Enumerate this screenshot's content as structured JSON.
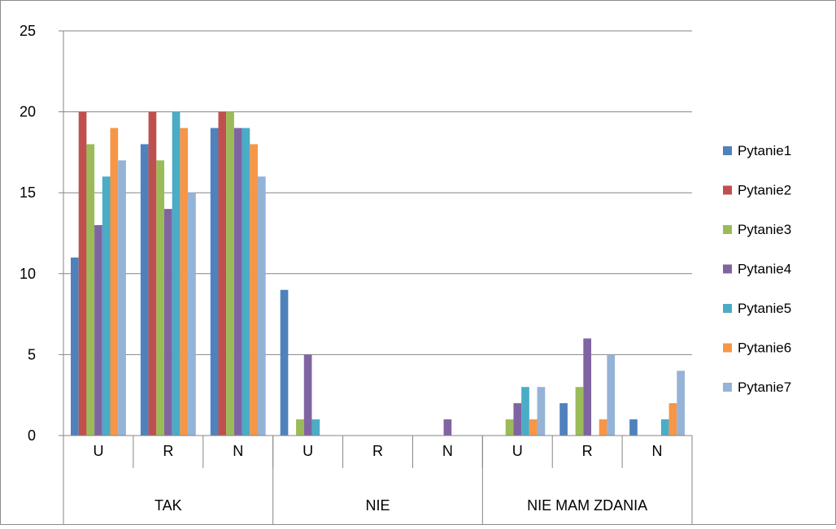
{
  "chart_data": {
    "type": "bar",
    "groups": [
      {
        "label": "TAK",
        "categories": [
          "U",
          "R",
          "N"
        ]
      },
      {
        "label": "NIE",
        "categories": [
          "U",
          "R",
          "N"
        ]
      },
      {
        "label": "NIE MAM ZDANIA",
        "categories": [
          "U",
          "R",
          "N"
        ]
      }
    ],
    "ylim": [
      0,
      25
    ],
    "yticks": [
      "0",
      "5",
      "10",
      "15",
      "20",
      "25"
    ],
    "grid": true,
    "legend_position": "right",
    "series": [
      {
        "name": "Pytanie1",
        "color": "#4F81BD",
        "values": [
          11,
          18,
          19,
          9,
          0,
          0,
          0,
          2,
          1
        ]
      },
      {
        "name": "Pytanie2",
        "color": "#C0504D",
        "values": [
          20,
          20,
          20,
          0,
          0,
          0,
          0,
          0,
          0
        ]
      },
      {
        "name": "Pytanie3",
        "color": "#9BBB59",
        "values": [
          18,
          17,
          20,
          1,
          0,
          0,
          1,
          3,
          0
        ]
      },
      {
        "name": "Pytanie4",
        "color": "#8064A2",
        "values": [
          13,
          14,
          19,
          5,
          0,
          1,
          2,
          6,
          0
        ]
      },
      {
        "name": "Pytanie5",
        "color": "#4BACC6",
        "values": [
          16,
          20,
          19,
          1,
          0,
          0,
          3,
          0,
          1
        ]
      },
      {
        "name": "Pytanie6",
        "color": "#F79646",
        "values": [
          19,
          19,
          18,
          0,
          0,
          0,
          1,
          1,
          2
        ]
      },
      {
        "name": "Pytanie7",
        "color": "#95B3D7",
        "values": [
          17,
          15,
          16,
          0,
          0,
          0,
          3,
          5,
          4
        ]
      }
    ]
  }
}
